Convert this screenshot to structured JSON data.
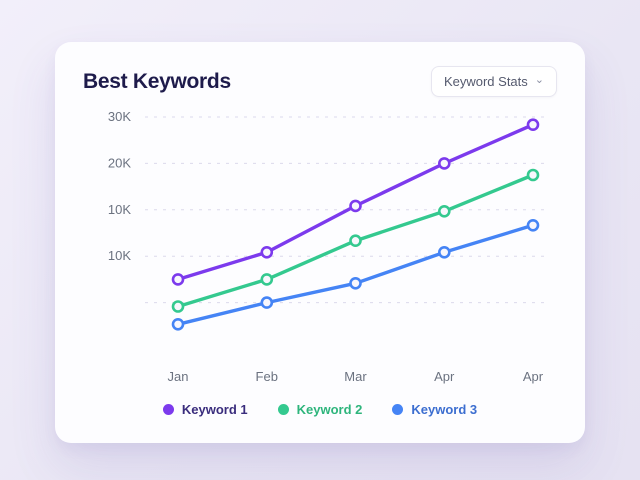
{
  "card": {
    "title": "Best Keywords",
    "dropdown": {
      "label": "Keyword Stats",
      "chevron": "⌄"
    }
  },
  "chart_data": {
    "type": "line",
    "title": "Best Keywords",
    "categories": [
      "Jan",
      "Feb",
      "Mar",
      "Apr",
      "Apr"
    ],
    "y_ticks": [
      "30K",
      "20K",
      "10K",
      "10K"
    ],
    "ylim": [
      0,
      30000
    ],
    "grid": "dashed-horizontal",
    "legend_position": "bottom",
    "marker_fill": "#f8f7fd",
    "gridline_color": "#dcd9ec",
    "axis_label_color": "#6b7280",
    "series": [
      {
        "name": "Keyword 1",
        "color": "#7c3aed",
        "label_color": "#3a2d7d",
        "values": [
          9000,
          12500,
          18500,
          24000,
          29000
        ]
      },
      {
        "name": "Keyword 2",
        "color": "#34c98f",
        "label_color": "#2eb57c",
        "values": [
          5500,
          9000,
          14000,
          17800,
          22500
        ]
      },
      {
        "name": "Keyword 3",
        "color": "#4584f5",
        "label_color": "#3c6ed0",
        "values": [
          3200,
          6000,
          8500,
          12500,
          16000
        ]
      }
    ]
  }
}
